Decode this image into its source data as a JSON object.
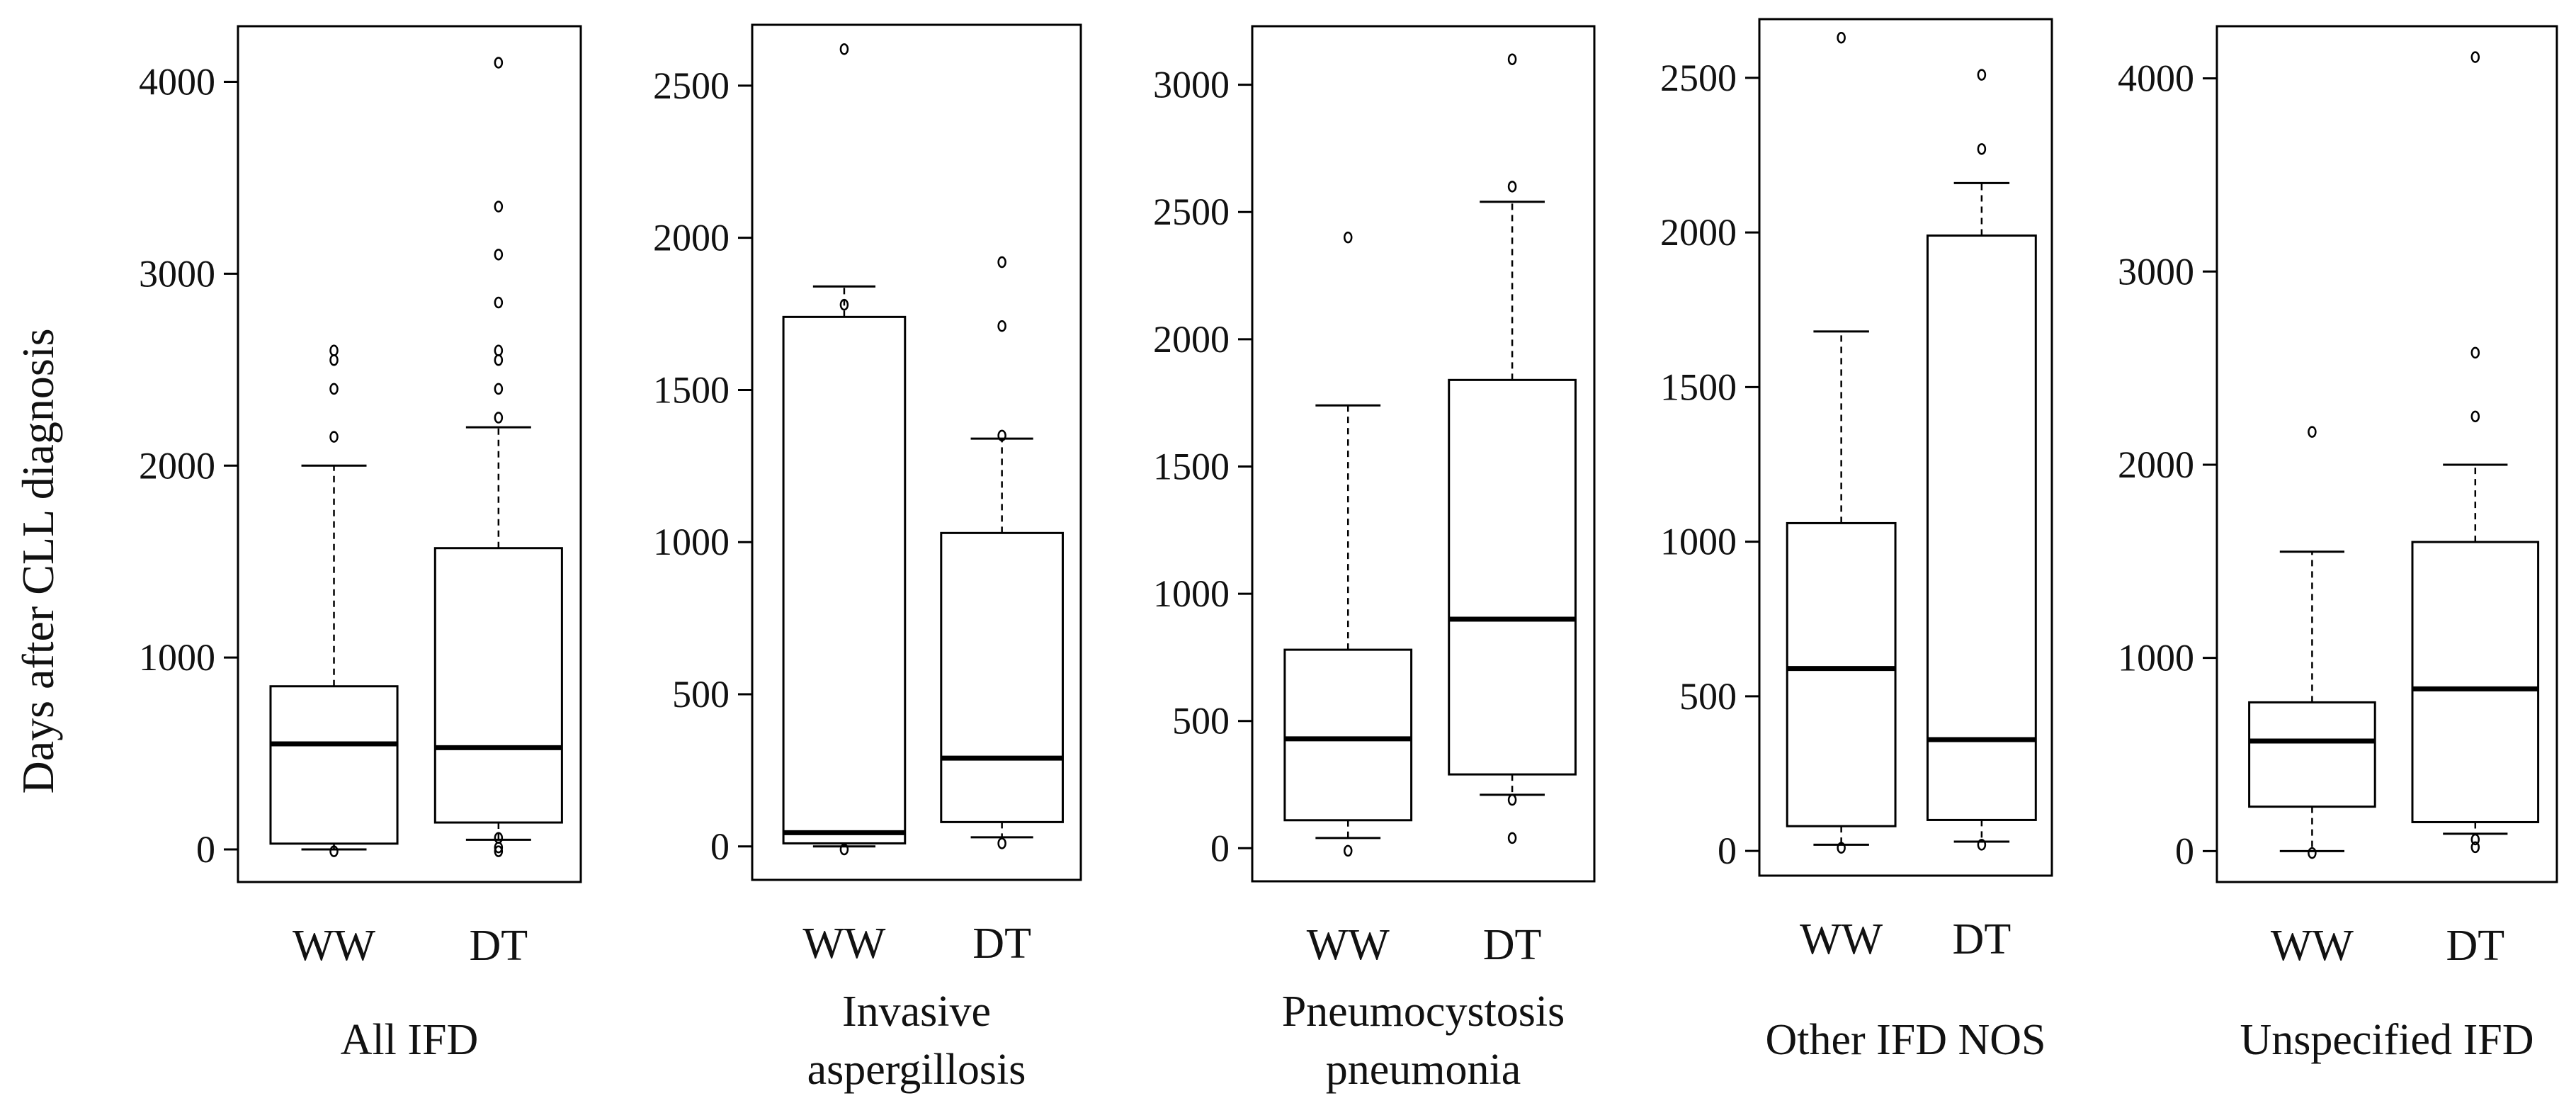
{
  "figure": {
    "y_axis_label": "Days after CLL diagnosis"
  },
  "chart_data": [
    {
      "type": "box",
      "title": [
        "All IFD"
      ],
      "categories": [
        "WW",
        "DT"
      ],
      "ylabel": "Days after CLL diagnosis",
      "ylim": [
        -170,
        4290
      ],
      "yticks": [
        0,
        1000,
        2000,
        3000,
        4000
      ],
      "boxes": [
        {
          "category": "WW",
          "whisker_low": 0,
          "q1": 30,
          "median": 550,
          "q3": 850,
          "whisker_high": 2000,
          "outliers": [
            -10,
            2150,
            2400,
            2550,
            2600
          ]
        },
        {
          "category": "DT",
          "whisker_low": 50,
          "q1": 140,
          "median": 530,
          "q3": 1570,
          "whisker_high": 2200,
          "outliers": [
            -10,
            10,
            60,
            2250,
            2400,
            2550,
            2600,
            2850,
            3100,
            3350,
            4100
          ]
        }
      ]
    },
    {
      "type": "box",
      "title": [
        "Invasive",
        "aspergillosis"
      ],
      "categories": [
        "WW",
        "DT"
      ],
      "ylabel": "Days after CLL diagnosis",
      "ylim": [
        -110,
        2700
      ],
      "yticks": [
        0,
        500,
        1000,
        1500,
        2000,
        2500
      ],
      "boxes": [
        {
          "category": "WW",
          "whisker_low": 0,
          "q1": 10,
          "median": 45,
          "q3": 1740,
          "whisker_high": 1840,
          "outliers": [
            -10,
            1780,
            2620
          ]
        },
        {
          "category": "DT",
          "whisker_low": 30,
          "q1": 80,
          "median": 290,
          "q3": 1030,
          "whisker_high": 1340,
          "outliers": [
            10,
            1350,
            1710,
            1920
          ]
        }
      ]
    },
    {
      "type": "box",
      "title": [
        "Pneumocystosis",
        "pneumonia"
      ],
      "categories": [
        "WW",
        "DT"
      ],
      "ylabel": "Days after CLL diagnosis",
      "ylim": [
        -130,
        3230
      ],
      "yticks": [
        0,
        500,
        1000,
        1500,
        2000,
        2500,
        3000
      ],
      "boxes": [
        {
          "category": "WW",
          "whisker_low": 40,
          "q1": 110,
          "median": 430,
          "q3": 780,
          "whisker_high": 1740,
          "outliers": [
            -10,
            2400
          ]
        },
        {
          "category": "DT",
          "whisker_low": 210,
          "q1": 290,
          "median": 900,
          "q3": 1840,
          "whisker_high": 2540,
          "outliers": [
            40,
            190,
            2600,
            3100
          ]
        }
      ]
    },
    {
      "type": "box",
      "title": [
        "Other IFD NOS"
      ],
      "categories": [
        "WW",
        "DT"
      ],
      "ylabel": "Days after CLL diagnosis",
      "ylim": [
        -80,
        2690
      ],
      "yticks": [
        0,
        500,
        1000,
        1500,
        2000,
        2500
      ],
      "boxes": [
        {
          "category": "WW",
          "whisker_low": 20,
          "q1": 80,
          "median": 590,
          "q3": 1060,
          "whisker_high": 1680,
          "outliers": [
            10,
            2630
          ]
        },
        {
          "category": "DT",
          "whisker_low": 30,
          "q1": 100,
          "median": 360,
          "q3": 1990,
          "whisker_high": 2160,
          "outliers": [
            20,
            2270,
            2510
          ]
        }
      ]
    },
    {
      "type": "box",
      "title": [
        "Unspecified IFD"
      ],
      "categories": [
        "WW",
        "DT"
      ],
      "ylabel": "Days after CLL diagnosis",
      "ylim": [
        -160,
        4270
      ],
      "yticks": [
        0,
        1000,
        2000,
        3000,
        4000
      ],
      "boxes": [
        {
          "category": "WW",
          "whisker_low": 0,
          "q1": 230,
          "median": 570,
          "q3": 770,
          "whisker_high": 1550,
          "outliers": [
            -10,
            2170
          ]
        },
        {
          "category": "DT",
          "whisker_low": 90,
          "q1": 150,
          "median": 840,
          "q3": 1600,
          "whisker_high": 2000,
          "outliers": [
            20,
            60,
            2250,
            2580,
            4110
          ]
        }
      ]
    }
  ]
}
